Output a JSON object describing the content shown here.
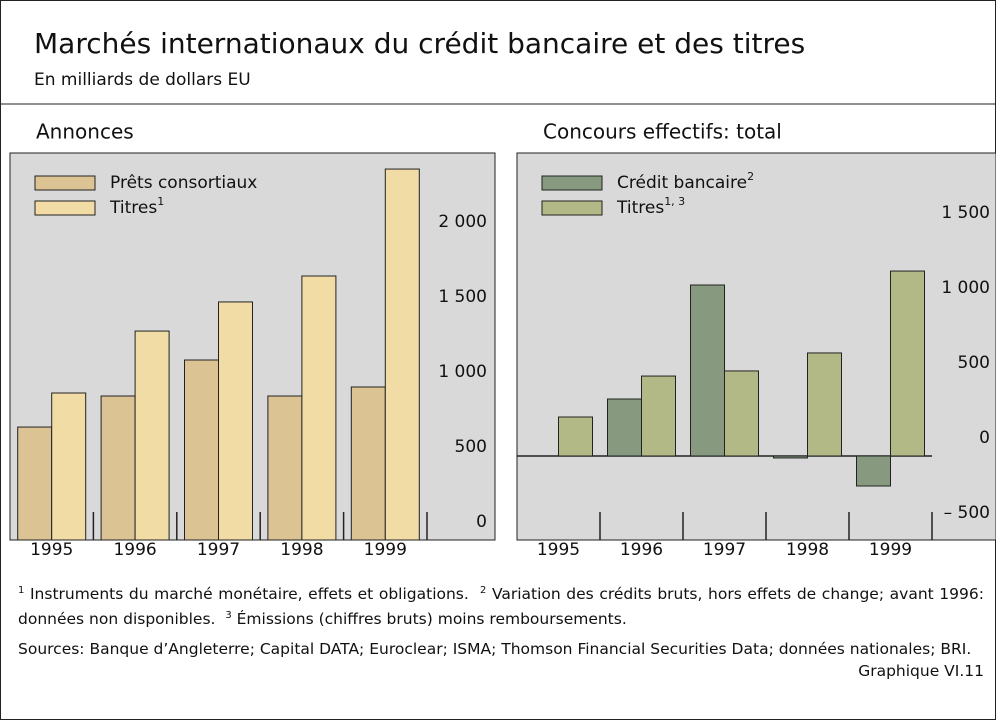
{
  "title": "Marchés internationaux du crédit bancaire et des titres",
  "subtitle": "En milliards de dollars EU",
  "chart_data": [
    {
      "type": "bar",
      "title": "Annonces",
      "categories": [
        "1995",
        "1996",
        "1997",
        "1998",
        "1999"
      ],
      "series": [
        {
          "name": "Prêts consortiaux",
          "color": "#dcc393",
          "values": [
            753,
            960,
            1200,
            960,
            1020
          ]
        },
        {
          "name": "Titres",
          "note": "1",
          "color": "#f0dca4",
          "values": [
            980,
            1393,
            1587,
            1760,
            2473
          ]
        }
      ],
      "ylim": [
        0,
        2580
      ],
      "yticks": [
        0,
        500,
        {
          "value": 1000,
          "label": "1 000"
        },
        {
          "value": 1500,
          "label": "1 500"
        },
        {
          "value": 2000,
          "label": "2 000"
        }
      ],
      "grid": false,
      "legend": "top-left"
    },
    {
      "type": "bar",
      "title": "Concours effectifs: total",
      "categories": [
        "1995",
        "1996",
        "1997",
        "1998",
        "1999"
      ],
      "series": [
        {
          "name": "Crédit bancaire",
          "note": "2",
          "color": "#879a80",
          "values": [
            null,
            380,
            1140,
            -13,
            -200
          ]
        },
        {
          "name": "Titres",
          "note": "1, 3",
          "color": "#b3b887",
          "values": [
            260,
            533,
            567,
            687,
            1233
          ]
        }
      ],
      "ylim": [
        -560,
        2020
      ],
      "yticks": [
        {
          "value": -500,
          "label": "– 500"
        },
        0,
        500,
        {
          "value": 1000,
          "label": "1 000"
        },
        {
          "value": 1500,
          "label": "1 500"
        }
      ],
      "grid": false,
      "legend": "top-left"
    }
  ],
  "footnotes": [
    {
      "mark": "1",
      "text": "Instruments du marché monétaire, effets et obligations."
    },
    {
      "mark": "2",
      "text": "Variation des crédits bruts, hors effets de change; avant 1996: données non disponibles."
    },
    {
      "mark": "3",
      "text": "Émissions (chiffres bruts) moins remboursements."
    }
  ],
  "sources": "Sources: Banque d’Angleterre; Capital DATA; Euroclear; ISMA; Thomson Financial Securities Data; données nationales; BRI.",
  "figure_label": "Graphique VI.11"
}
